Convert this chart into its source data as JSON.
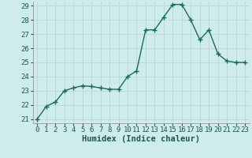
{
  "x": [
    0,
    1,
    2,
    3,
    4,
    5,
    6,
    7,
    8,
    9,
    10,
    11,
    12,
    13,
    14,
    15,
    16,
    17,
    18,
    19,
    20,
    21,
    22,
    23
  ],
  "y": [
    21.0,
    21.9,
    22.2,
    23.0,
    23.2,
    23.35,
    23.3,
    23.2,
    23.1,
    23.1,
    24.0,
    24.4,
    27.3,
    27.3,
    28.2,
    29.1,
    29.1,
    28.0,
    26.6,
    27.3,
    25.6,
    25.1,
    25.0,
    25.0
  ],
  "line_color": "#1a6b5e",
  "marker": "+",
  "marker_size": 4,
  "marker_lw": 1.0,
  "bg_color": "#cdecea",
  "grid_color": "#b8d8d5",
  "xlabel": "Humidex (Indice chaleur)",
  "ylim_min": 20.7,
  "ylim_max": 29.3,
  "xlim_min": -0.5,
  "xlim_max": 23.5,
  "yticks": [
    21,
    22,
    23,
    24,
    25,
    26,
    27,
    28,
    29
  ],
  "xticks": [
    0,
    1,
    2,
    3,
    4,
    5,
    6,
    7,
    8,
    9,
    10,
    11,
    12,
    13,
    14,
    15,
    16,
    17,
    18,
    19,
    20,
    21,
    22,
    23
  ],
  "xlabel_fontsize": 7.5,
  "tick_fontsize": 6.5,
  "line_width": 1.0
}
